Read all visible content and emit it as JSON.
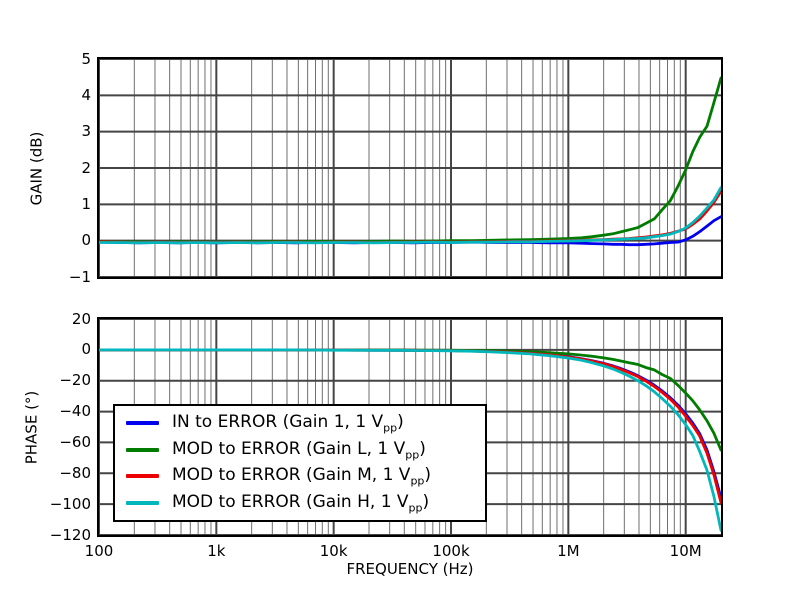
{
  "figure": {
    "background": "#ffffff"
  },
  "legend": {
    "items": [
      {
        "pre": "IN to ERROR (Gain 1, 1 V",
        "sub": "pp",
        "post": ")",
        "color": "#0000ee"
      },
      {
        "pre": "MOD to ERROR (Gain L, 1 V",
        "sub": "pp",
        "post": ")",
        "color": "#007d00"
      },
      {
        "pre": "MOD to ERROR (Gain M, 1 V",
        "sub": "pp",
        "post": ")",
        "color": "#ee0000"
      },
      {
        "pre": "MOD to ERROR (Gain H, 1 V",
        "sub": "pp",
        "post": ")",
        "color": "#00b8bc"
      }
    ]
  },
  "chart_data": [
    {
      "type": "line",
      "title": "",
      "ylabel": "GAIN (dB)",
      "xscale": "log",
      "xlim": [
        100,
        20000000
      ],
      "ylim": [
        -1,
        5
      ],
      "grid": "major-and-minor",
      "yticks": {
        "values": [
          5,
          4,
          3,
          2,
          1,
          0,
          -1
        ],
        "labels": [
          "5",
          "4",
          "3",
          "2",
          "1",
          "0",
          "−1"
        ]
      },
      "x": [
        100,
        150,
        220,
        330,
        470,
        680,
        1000,
        1500,
        2200,
        3300,
        4700,
        6800,
        10000,
        15000,
        22000,
        33000,
        47000,
        68000,
        100000,
        150000,
        220000,
        330000,
        470000,
        680000,
        1000000,
        1300000,
        1600000,
        2000000,
        2400000,
        2800000,
        3300000,
        3900000,
        4600000,
        5400000,
        6300000,
        7400000,
        8600000,
        10000000,
        11500000,
        13200000,
        15200000,
        17400000,
        20000000
      ],
      "series": [
        {
          "name": "IN to ERROR (Gain 1, 1 Vpp)",
          "color": "#0000ee",
          "values": [
            -0.04,
            -0.05,
            -0.06,
            -0.05,
            -0.06,
            -0.05,
            -0.06,
            -0.05,
            -0.06,
            -0.05,
            -0.06,
            -0.05,
            -0.05,
            -0.06,
            -0.05,
            -0.05,
            -0.06,
            -0.05,
            -0.05,
            -0.04,
            -0.05,
            -0.05,
            -0.05,
            -0.06,
            -0.06,
            -0.07,
            -0.08,
            -0.09,
            -0.1,
            -0.1,
            -0.11,
            -0.11,
            -0.1,
            -0.09,
            -0.07,
            -0.05,
            -0.04,
            0.02,
            0.12,
            0.25,
            0.4,
            0.55,
            0.66
          ]
        },
        {
          "name": "MOD to ERROR (Gain L, 1 Vpp)",
          "color": "#007d00",
          "values": [
            -0.02,
            -0.03,
            -0.03,
            -0.04,
            -0.03,
            -0.03,
            -0.04,
            -0.03,
            -0.03,
            -0.02,
            -0.03,
            -0.02,
            -0.02,
            -0.03,
            -0.02,
            -0.01,
            -0.02,
            -0.01,
            0.0,
            0.0,
            0.01,
            0.02,
            0.03,
            0.04,
            0.06,
            0.08,
            0.11,
            0.15,
            0.19,
            0.24,
            0.3,
            0.36,
            0.48,
            0.6,
            0.85,
            1.1,
            1.5,
            1.95,
            2.45,
            2.85,
            3.15,
            3.8,
            4.48
          ]
        },
        {
          "name": "MOD to ERROR (Gain M, 1 Vpp)",
          "color": "#ee0000",
          "values": [
            -0.03,
            -0.04,
            -0.05,
            -0.04,
            -0.05,
            -0.04,
            -0.05,
            -0.04,
            -0.05,
            -0.04,
            -0.04,
            -0.05,
            -0.04,
            -0.04,
            -0.05,
            -0.04,
            -0.04,
            -0.03,
            -0.04,
            -0.03,
            -0.03,
            -0.02,
            -0.02,
            -0.01,
            0.0,
            0.01,
            0.02,
            0.03,
            0.04,
            0.05,
            0.06,
            0.08,
            0.1,
            0.13,
            0.16,
            0.2,
            0.26,
            0.32,
            0.45,
            0.6,
            0.82,
            1.05,
            1.36
          ]
        },
        {
          "name": "MOD to ERROR (Gain H, 1 Vpp)",
          "color": "#00b8bc",
          "values": [
            -0.05,
            -0.05,
            -0.06,
            -0.05,
            -0.06,
            -0.05,
            -0.06,
            -0.05,
            -0.06,
            -0.05,
            -0.05,
            -0.06,
            -0.05,
            -0.05,
            -0.06,
            -0.05,
            -0.05,
            -0.04,
            -0.05,
            -0.04,
            -0.04,
            -0.03,
            -0.03,
            -0.02,
            -0.01,
            0.0,
            0.01,
            0.02,
            0.03,
            0.04,
            0.05,
            0.06,
            0.08,
            0.11,
            0.14,
            0.18,
            0.25,
            0.35,
            0.5,
            0.68,
            0.9,
            1.12,
            1.46
          ]
        }
      ]
    },
    {
      "type": "line",
      "title": "",
      "xlabel": "FREQUENCY (Hz)",
      "ylabel": "PHASE (°)",
      "xscale": "log",
      "xlim": [
        100,
        20000000
      ],
      "ylim": [
        -120,
        20
      ],
      "grid": "major-and-minor",
      "legend_position": "lower-left",
      "yticks": {
        "values": [
          20,
          0,
          -20,
          -40,
          -60,
          -80,
          -100,
          -120
        ],
        "labels": [
          "20",
          "0",
          "−20",
          "−40",
          "−60",
          "−80",
          "−100",
          "−120"
        ]
      },
      "xticks": {
        "values": [
          100,
          1000,
          10000,
          100000,
          1000000,
          10000000
        ],
        "labels": [
          "100",
          "1k",
          "10k",
          "100k",
          "1M",
          "10M"
        ]
      },
      "x": [
        100,
        150,
        220,
        330,
        470,
        680,
        1000,
        1500,
        2200,
        3300,
        4700,
        6800,
        10000,
        15000,
        22000,
        33000,
        47000,
        68000,
        100000,
        150000,
        220000,
        330000,
        470000,
        680000,
        1000000,
        1300000,
        1600000,
        2000000,
        2400000,
        2800000,
        3300000,
        3900000,
        4600000,
        5400000,
        6300000,
        7400000,
        8600000,
        10000000,
        11500000,
        13200000,
        15200000,
        17400000,
        20000000
      ],
      "series": [
        {
          "name": "IN to ERROR (Gain 1, 1 Vpp)",
          "color": "#0000ee",
          "values": [
            0,
            0,
            0,
            0,
            0,
            0,
            0,
            0,
            0,
            0,
            0,
            -0.1,
            -0.1,
            -0.1,
            -0.2,
            -0.2,
            -0.3,
            -0.4,
            -0.5,
            -0.7,
            -1.0,
            -1.5,
            -2.1,
            -3.0,
            -4.4,
            -5.7,
            -7.0,
            -8.7,
            -10.4,
            -12.1,
            -14.2,
            -16.7,
            -19.6,
            -22.9,
            -26.6,
            -31.0,
            -35.8,
            -41.5,
            -47.5,
            -54.5,
            -65.0,
            -79.0,
            -96.0
          ]
        },
        {
          "name": "MOD to ERROR (Gain L, 1 Vpp)",
          "color": "#007d00",
          "values": [
            0,
            0,
            0,
            0,
            0,
            0,
            0,
            0,
            0,
            0,
            0,
            0,
            -0.1,
            -0.1,
            -0.1,
            -0.1,
            -0.2,
            -0.2,
            -0.3,
            -0.4,
            -0.6,
            -0.9,
            -1.2,
            -1.8,
            -2.6,
            -3.4,
            -4.2,
            -5.2,
            -6.2,
            -7.2,
            -8.4,
            -9.4,
            -11.5,
            -13.0,
            -16.0,
            -18.5,
            -23.0,
            -28.0,
            -33.0,
            -39.0,
            -46.0,
            -54.0,
            -65.0
          ]
        },
        {
          "name": "MOD to ERROR (Gain M, 1 Vpp)",
          "color": "#ee0000",
          "values": [
            0,
            0,
            0,
            0,
            0,
            0,
            0,
            0,
            0,
            0,
            0,
            -0.1,
            -0.1,
            -0.2,
            -0.2,
            -0.3,
            -0.3,
            -0.4,
            -0.5,
            -0.8,
            -1.1,
            -1.6,
            -2.2,
            -3.2,
            -4.6,
            -5.9,
            -7.3,
            -9.0,
            -10.8,
            -12.6,
            -14.8,
            -17.3,
            -20.3,
            -23.7,
            -27.5,
            -32.0,
            -37.0,
            -43.0,
            -49.0,
            -56.0,
            -67.0,
            -81.0,
            -99.0
          ]
        },
        {
          "name": "MOD to ERROR (Gain H, 1 Vpp)",
          "color": "#00b8bc",
          "values": [
            0,
            0,
            0,
            0,
            0,
            0,
            0,
            0,
            0,
            0,
            0,
            -0.1,
            -0.2,
            -0.2,
            -0.3,
            -0.3,
            -0.4,
            -0.5,
            -0.6,
            -0.9,
            -1.3,
            -1.9,
            -2.6,
            -3.7,
            -5.3,
            -6.8,
            -8.4,
            -10.4,
            -12.4,
            -14.5,
            -17.0,
            -19.9,
            -23.3,
            -27.2,
            -31.5,
            -36.5,
            -42.0,
            -48.5,
            -55.5,
            -66.0,
            -78.0,
            -95.0,
            -117.0
          ]
        }
      ]
    }
  ]
}
